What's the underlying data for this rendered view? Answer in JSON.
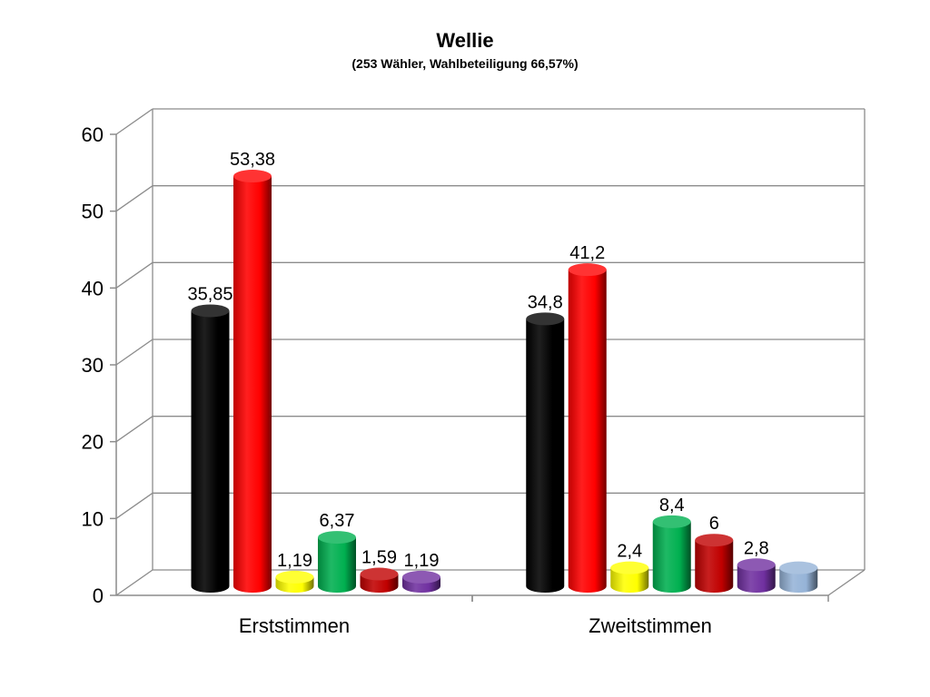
{
  "chart_data": {
    "type": "bar",
    "title": "Wellie",
    "subtitle": "(253 Wähler, Wahlbeteiligung 66,57%)",
    "categories": [
      "Erststimmen",
      "Zweitstimmen"
    ],
    "ylim": [
      0,
      60
    ],
    "yticks": [
      "0",
      "10",
      "20",
      "30",
      "40",
      "50",
      "60"
    ],
    "grid": true,
    "legend": "none",
    "groups": [
      {
        "category": "Erststimmen",
        "bars": [
          {
            "value": 35.85,
            "label": "35,85",
            "color": "#000000"
          },
          {
            "value": 53.38,
            "label": "53,38",
            "color": "#ff0000"
          },
          {
            "value": 1.19,
            "label": "1,19",
            "color": "#ffff00"
          },
          {
            "value": 6.37,
            "label": "6,37",
            "color": "#00b050"
          },
          {
            "value": 1.59,
            "label": "1,59",
            "color": "#c00000"
          },
          {
            "value": 1.19,
            "label": "1,19",
            "color": "#7030a0"
          }
        ]
      },
      {
        "category": "Zweitstimmen",
        "bars": [
          {
            "value": 34.8,
            "label": "34,8",
            "color": "#000000"
          },
          {
            "value": 41.2,
            "label": "41,2",
            "color": "#ff0000"
          },
          {
            "value": 2.4,
            "label": "2,4",
            "color": "#ffff00"
          },
          {
            "value": 8.4,
            "label": "8,4",
            "color": "#00b050"
          },
          {
            "value": 6,
            "label": "6",
            "color": "#c00000"
          },
          {
            "value": 2.8,
            "label": "2,8",
            "color": "#7030a0"
          },
          {
            "value": 2.4,
            "label": "",
            "color": "#95b3d7"
          }
        ]
      }
    ]
  }
}
